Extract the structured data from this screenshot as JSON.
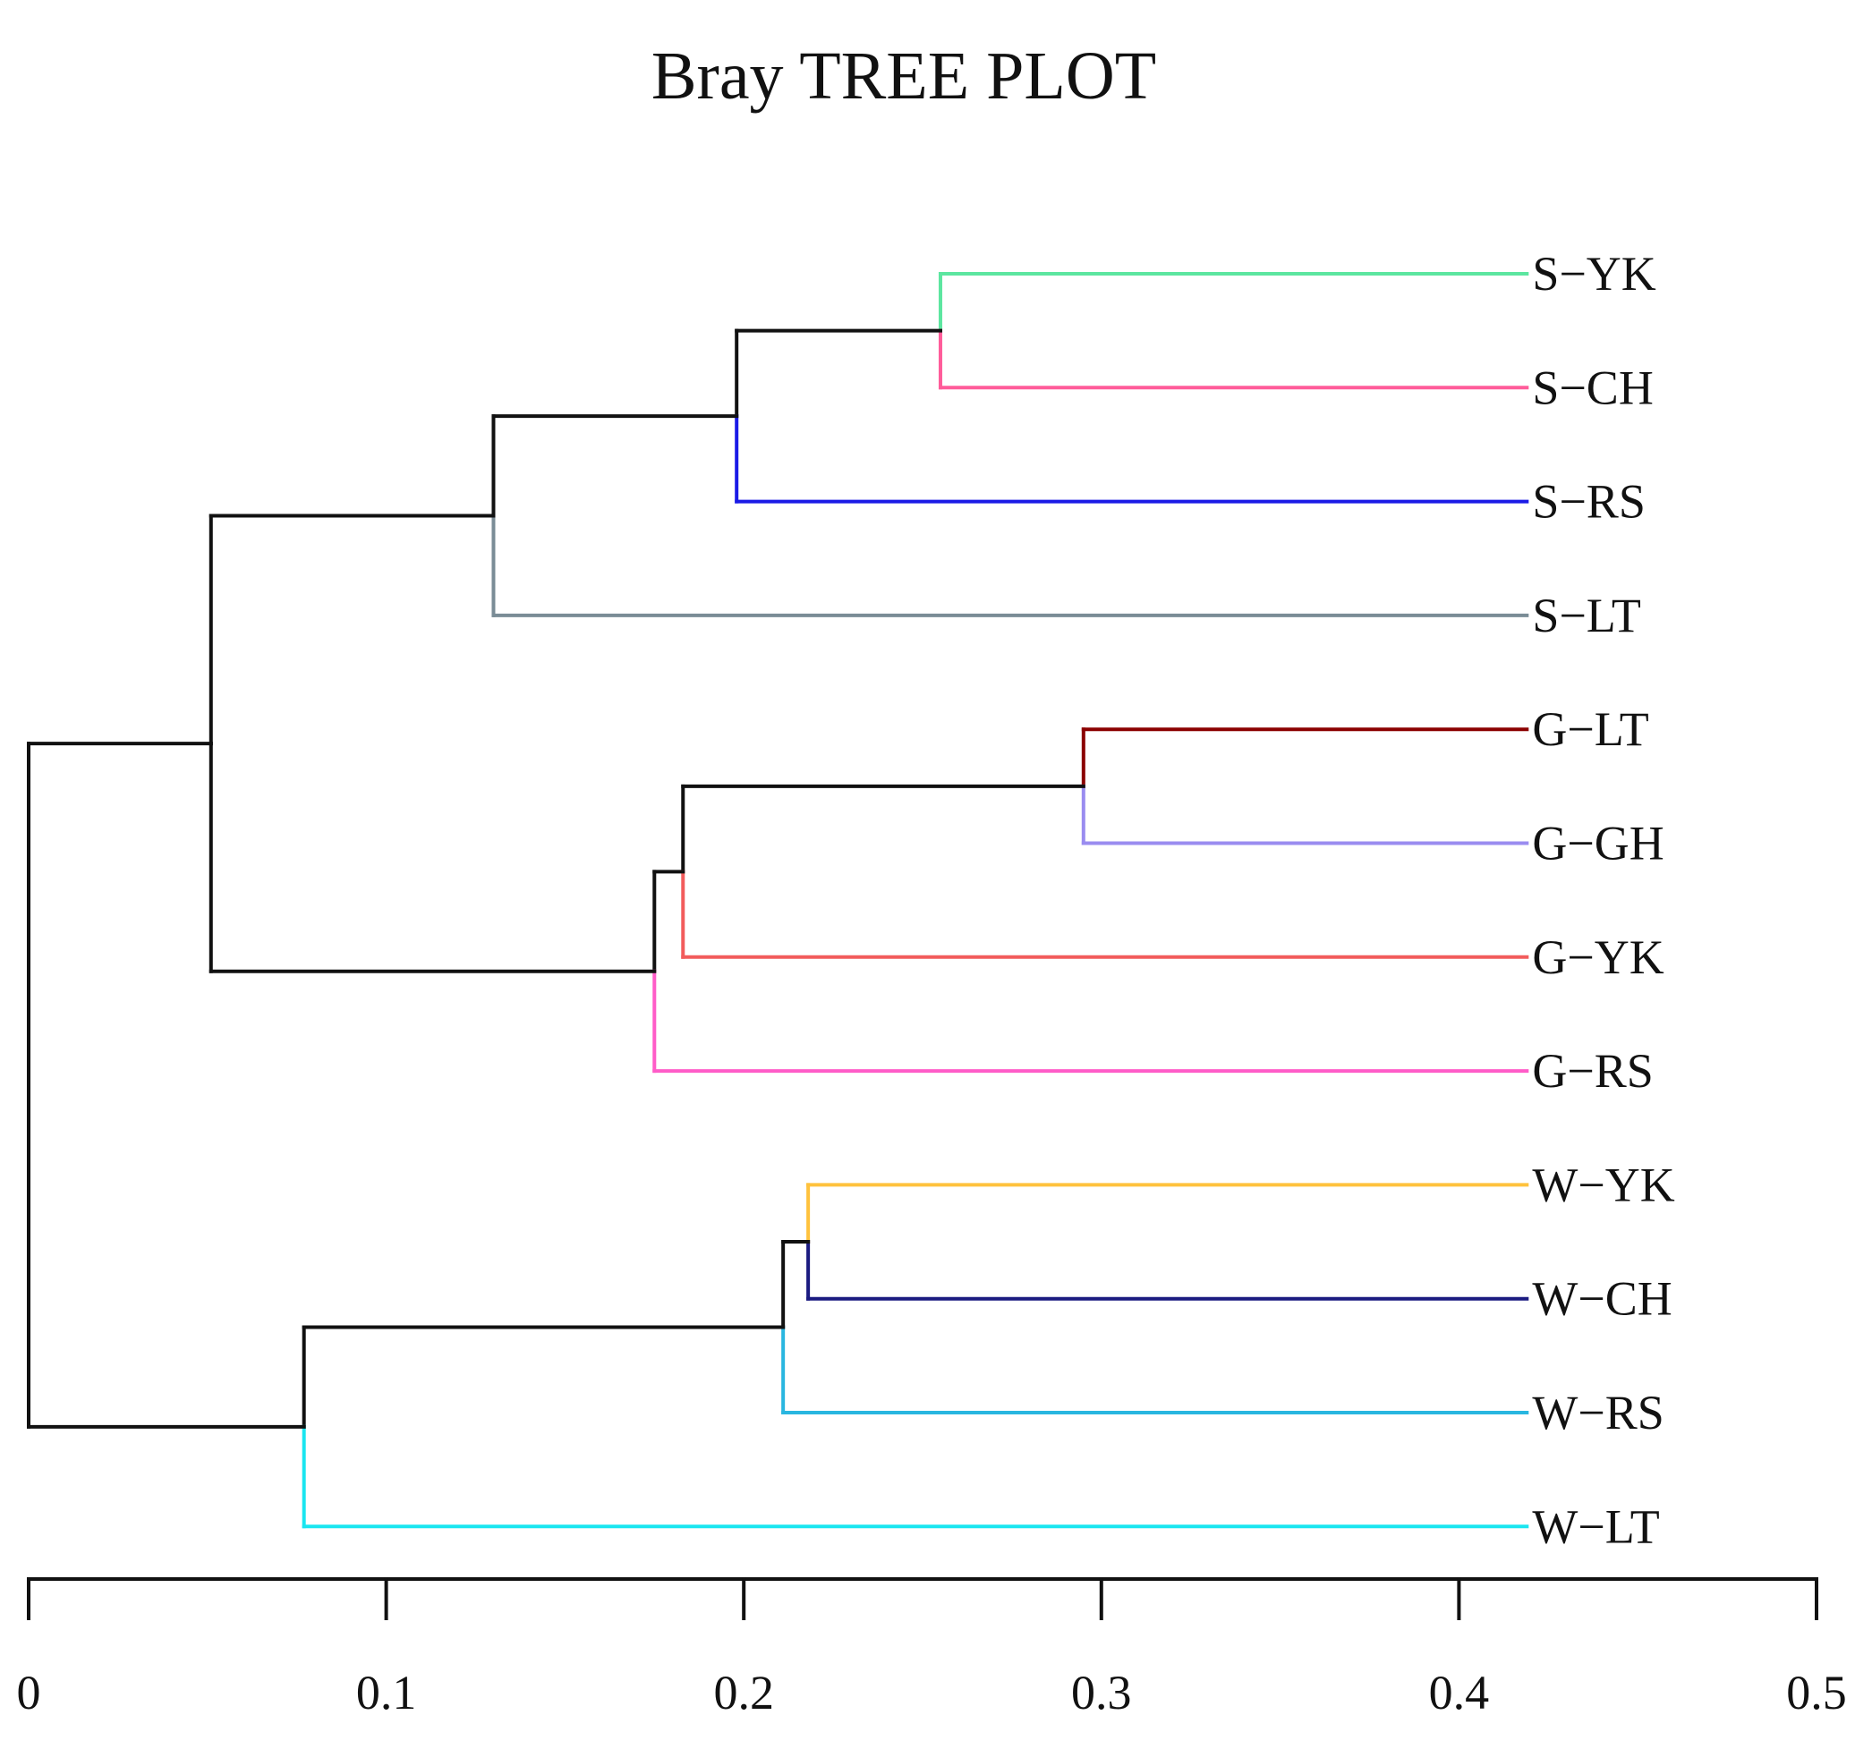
{
  "chart_data": {
    "type": "dendrogram",
    "title": "Bray TREE PLOT",
    "orientation": "horizontal",
    "xlabel": "",
    "ylabel": "",
    "xlim": [
      0,
      0.5
    ],
    "ticks": [
      {
        "value": 0,
        "label": "0"
      },
      {
        "value": 0.1,
        "label": "0.1"
      },
      {
        "value": 0.2,
        "label": "0.2"
      },
      {
        "value": 0.3,
        "label": "0.3"
      },
      {
        "value": 0.4,
        "label": "0.4"
      },
      {
        "value": 0.5,
        "label": "0.5"
      }
    ],
    "leaf_end": 0.419,
    "leaves": [
      {
        "id": "S-YK",
        "label": "S−YK",
        "color": "#5CE6A0"
      },
      {
        "id": "S-CH",
        "label": "S−CH",
        "color": "#FF5C9A"
      },
      {
        "id": "S-RS",
        "label": "S−RS",
        "color": "#1A1AE6"
      },
      {
        "id": "S-LT",
        "label": "S−LT",
        "color": "#7A8C96"
      },
      {
        "id": "G-LT",
        "label": "G−LT",
        "color": "#8B0000"
      },
      {
        "id": "G-GH",
        "label": "G−GH",
        "color": "#9A8CF0"
      },
      {
        "id": "G-YK",
        "label": "G−YK",
        "color": "#F25C5C"
      },
      {
        "id": "G-RS",
        "label": "G−RS",
        "color": "#FF5CC8"
      },
      {
        "id": "W-YK",
        "label": "W−YK",
        "color": "#FFC23D"
      },
      {
        "id": "W-CH",
        "label": "W−CH",
        "color": "#1A1A80"
      },
      {
        "id": "W-RS",
        "label": "W−RS",
        "color": "#29B6E0"
      },
      {
        "id": "W-LT",
        "label": "W−LT",
        "color": "#1AE6F0"
      }
    ],
    "merges": [
      {
        "id": "n1",
        "a": "S-YK",
        "b": "S-CH",
        "height": 0.255
      },
      {
        "id": "n2",
        "a": "n1",
        "b": "S-RS",
        "height": 0.198
      },
      {
        "id": "n3",
        "a": "n2",
        "b": "S-LT",
        "height": 0.13
      },
      {
        "id": "n4",
        "a": "G-LT",
        "b": "G-GH",
        "height": 0.295
      },
      {
        "id": "n5",
        "a": "n4",
        "b": "G-YK",
        "height": 0.183
      },
      {
        "id": "n6",
        "a": "n5",
        "b": "G-RS",
        "height": 0.175
      },
      {
        "id": "n7",
        "a": "n3",
        "b": "n6",
        "height": 0.051
      },
      {
        "id": "n8",
        "a": "W-YK",
        "b": "W-CH",
        "height": 0.218
      },
      {
        "id": "n9",
        "a": "n8",
        "b": "W-RS",
        "height": 0.211
      },
      {
        "id": "n10",
        "a": "n9",
        "b": "W-LT",
        "height": 0.077
      },
      {
        "id": "n11",
        "a": "n7",
        "b": "n10",
        "height": 0.0
      }
    ],
    "internal_color": "#111111"
  }
}
